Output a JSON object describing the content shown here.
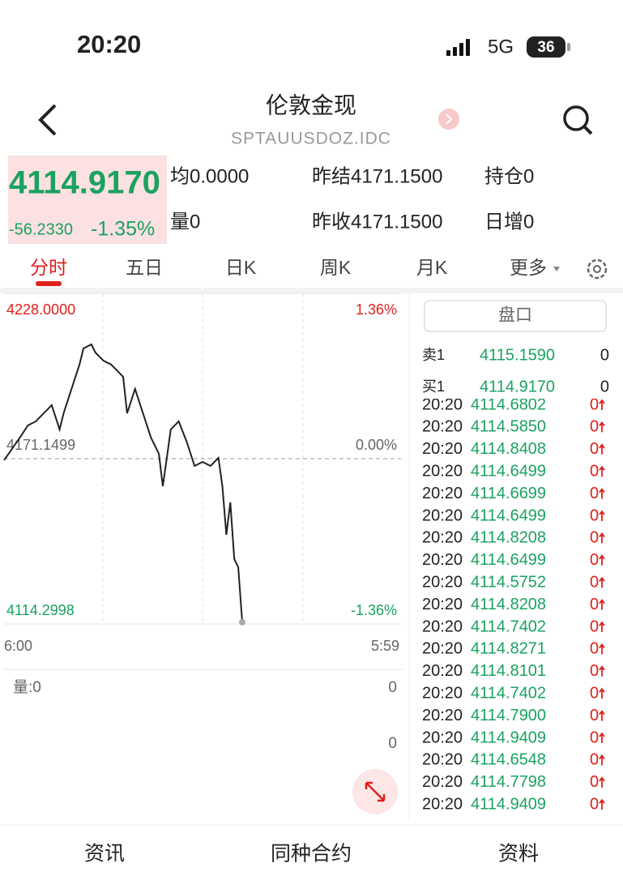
{
  "status_bar": {
    "time": "20:20",
    "network": "5G",
    "battery": "36"
  },
  "header": {
    "title": "伦敦金现",
    "subtitle": "SPTAUUSDOZ.IDC"
  },
  "quote": {
    "price": "4114.9170",
    "change": "-56.2330",
    "change_pct": "-1.35%",
    "stats": [
      [
        "均0.0000",
        "昨结4171.1500",
        "持仓0"
      ],
      [
        "量0",
        "昨收4171.1500",
        "日增0"
      ]
    ]
  },
  "tabs": [
    "分时",
    "五日",
    "日K",
    "周K",
    "月K",
    "更多"
  ],
  "chart_data": {
    "type": "line",
    "color": "#222222",
    "x": [
      0,
      4,
      6,
      8,
      10,
      12,
      14,
      15,
      17,
      19,
      20,
      22,
      23,
      25,
      27,
      30,
      31,
      33,
      35,
      37,
      39,
      40,
      42,
      44,
      46,
      48,
      50,
      52,
      54,
      55,
      56,
      57,
      58,
      59,
      60
    ],
    "values": [
      4170.6,
      4178.4,
      4182.58,
      4183.98,
      4186.76,
      4189.55,
      4181.19,
      4186.76,
      4195.12,
      4203.48,
      4209.06,
      4210.45,
      4207.66,
      4204.88,
      4203.48,
      4199.3,
      4186.76,
      4195.12,
      4186.76,
      4178.4,
      4172.83,
      4161.68,
      4181.19,
      4183.98,
      4177.01,
      4168.65,
      4170.04,
      4168.65,
      4171.43,
      4161.68,
      4144.96,
      4156.11,
      4136.6,
      4133.81,
      4114.917
    ],
    "xlim": [
      0,
      100
    ],
    "xticks": [
      {
        "value": 0,
        "label": "6:00"
      },
      {
        "value": 100,
        "label": "5:59"
      }
    ],
    "ylim": [
      4114.2998,
      4228.0
    ],
    "yticks": [
      {
        "value": 4228.0,
        "label": "4228.0000"
      },
      {
        "value": 4171.1499,
        "label": "4171.1499"
      },
      {
        "value": 4114.2998,
        "label": "4114.2998"
      }
    ],
    "y2lim": [
      -1.36,
      1.36
    ],
    "y2ticks": [
      {
        "value": 1.36,
        "label": "1.36%"
      },
      {
        "value": 0,
        "label": "0.00%"
      },
      {
        "value": -1.36,
        "label": "-1.36%"
      }
    ],
    "volume_label": "量:0",
    "volume_ticks": [
      "0",
      "0"
    ]
  },
  "order_book": {
    "button": "盘口",
    "levels": [
      [
        "卖1",
        "4115.1590",
        "0"
      ],
      [
        "买1",
        "4114.9170",
        "0"
      ]
    ],
    "trades": [
      [
        "20:20",
        "4114.6802",
        "0"
      ],
      [
        "20:20",
        "4114.5850",
        "0"
      ],
      [
        "20:20",
        "4114.8408",
        "0"
      ],
      [
        "20:20",
        "4114.6499",
        "0"
      ],
      [
        "20:20",
        "4114.6699",
        "0"
      ],
      [
        "20:20",
        "4114.6499",
        "0"
      ],
      [
        "20:20",
        "4114.8208",
        "0"
      ],
      [
        "20:20",
        "4114.6499",
        "0"
      ],
      [
        "20:20",
        "4114.5752",
        "0"
      ],
      [
        "20:20",
        "4114.8208",
        "0"
      ],
      [
        "20:20",
        "4114.7402",
        "0"
      ],
      [
        "20:20",
        "4114.8271",
        "0"
      ],
      [
        "20:20",
        "4114.8101",
        "0"
      ],
      [
        "20:20",
        "4114.7402",
        "0"
      ],
      [
        "20:20",
        "4114.7900",
        "0"
      ],
      [
        "20:20",
        "4114.9409",
        "0"
      ],
      [
        "20:20",
        "4114.6548",
        "0"
      ],
      [
        "20:20",
        "4114.7798",
        "0"
      ],
      [
        "20:20",
        "4114.9409",
        "0"
      ]
    ]
  },
  "bottom_tabs": [
    "资讯",
    "同种合约",
    "资料"
  ]
}
